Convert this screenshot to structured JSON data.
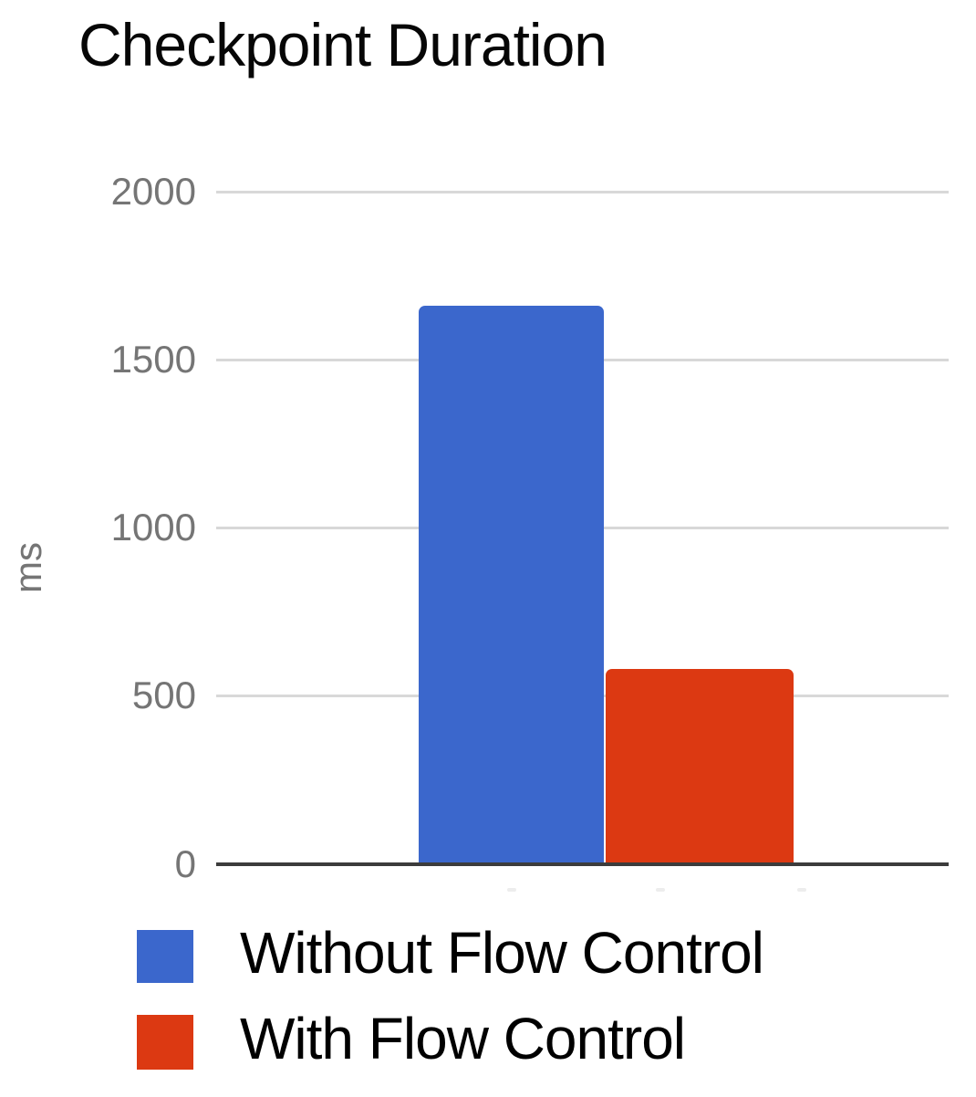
{
  "title": "Checkpoint Duration",
  "chart_data": {
    "type": "bar",
    "title": "Checkpoint Duration",
    "xlabel": "",
    "ylabel": "ms",
    "categories": [
      ""
    ],
    "series": [
      {
        "name": "Without Flow Control",
        "color": "#3b67cc",
        "values": [
          1660
        ]
      },
      {
        "name": "With Flow Control",
        "color": "#dc3912",
        "values": [
          580
        ]
      }
    ],
    "ylim": [
      0,
      2000
    ],
    "yticks": [
      0,
      500,
      1000,
      1500,
      2000
    ],
    "grid": true,
    "legend_position": "bottom-left"
  },
  "axis": {
    "unit_label": "ms",
    "ticks": [
      "2000",
      "1500",
      "1000",
      "500",
      "0"
    ]
  },
  "legend": {
    "items": [
      {
        "label": "Without Flow Control",
        "color": "#3b67cc"
      },
      {
        "label": "With Flow Control",
        "color": "#dc3912"
      }
    ]
  },
  "colors": {
    "gridline": "#d8d8d8",
    "axis_line": "#3c3c3c",
    "tick_text": "#757575",
    "title_text": "#060606"
  }
}
